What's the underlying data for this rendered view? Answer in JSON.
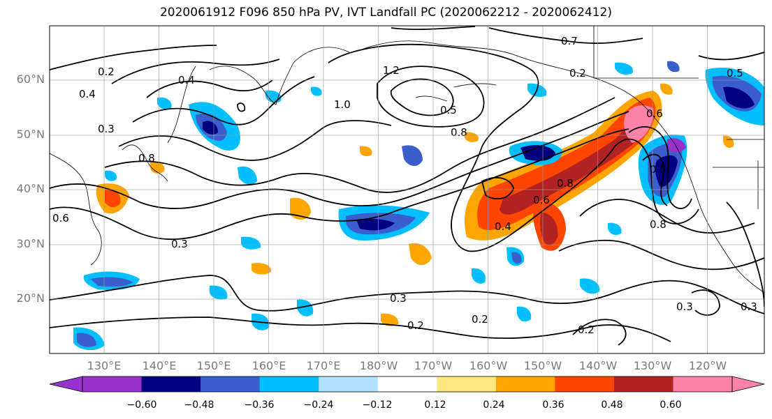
{
  "title": "2020061912 F096 850 hPa PV, IVT Landfall PC (2020062212 - 2020062412)",
  "map": {
    "lat_labels": [
      "60°N",
      "50°N",
      "40°N",
      "30°N",
      "20°N"
    ],
    "lon_labels": [
      "130°E",
      "140°E",
      "150°E",
      "160°E",
      "170°E",
      "180°W",
      "170°W",
      "160°W",
      "150°W",
      "140°W",
      "130°W",
      "120°W"
    ],
    "contour_labels": [
      "0.7",
      "0.4",
      "1.2",
      "1.0",
      "0.5",
      "0.8",
      "0.2",
      "0.3",
      "0.4",
      "0.8",
      "0.6",
      "0.8",
      "0.4",
      "0.3",
      "0.2",
      "0.2",
      "0.3",
      "0.2",
      "0.3",
      "0.8",
      "0.5",
      "0.6",
      "0.5",
      "0.6",
      "0.3",
      "0.2"
    ]
  },
  "colorbar": {
    "ticks": [
      "−0.60",
      "−0.48",
      "−0.36",
      "−0.24",
      "−0.12",
      "0.12",
      "0.24",
      "0.36",
      "0.48",
      "0.60"
    ],
    "colors": [
      "#9932cc",
      "#000080",
      "#3a5fcd",
      "#00bfff",
      "#b0e2ff",
      "#ffffff",
      "#ffe97f",
      "#ffa500",
      "#ff4500",
      "#b22222",
      "#ff82ab"
    ]
  }
}
